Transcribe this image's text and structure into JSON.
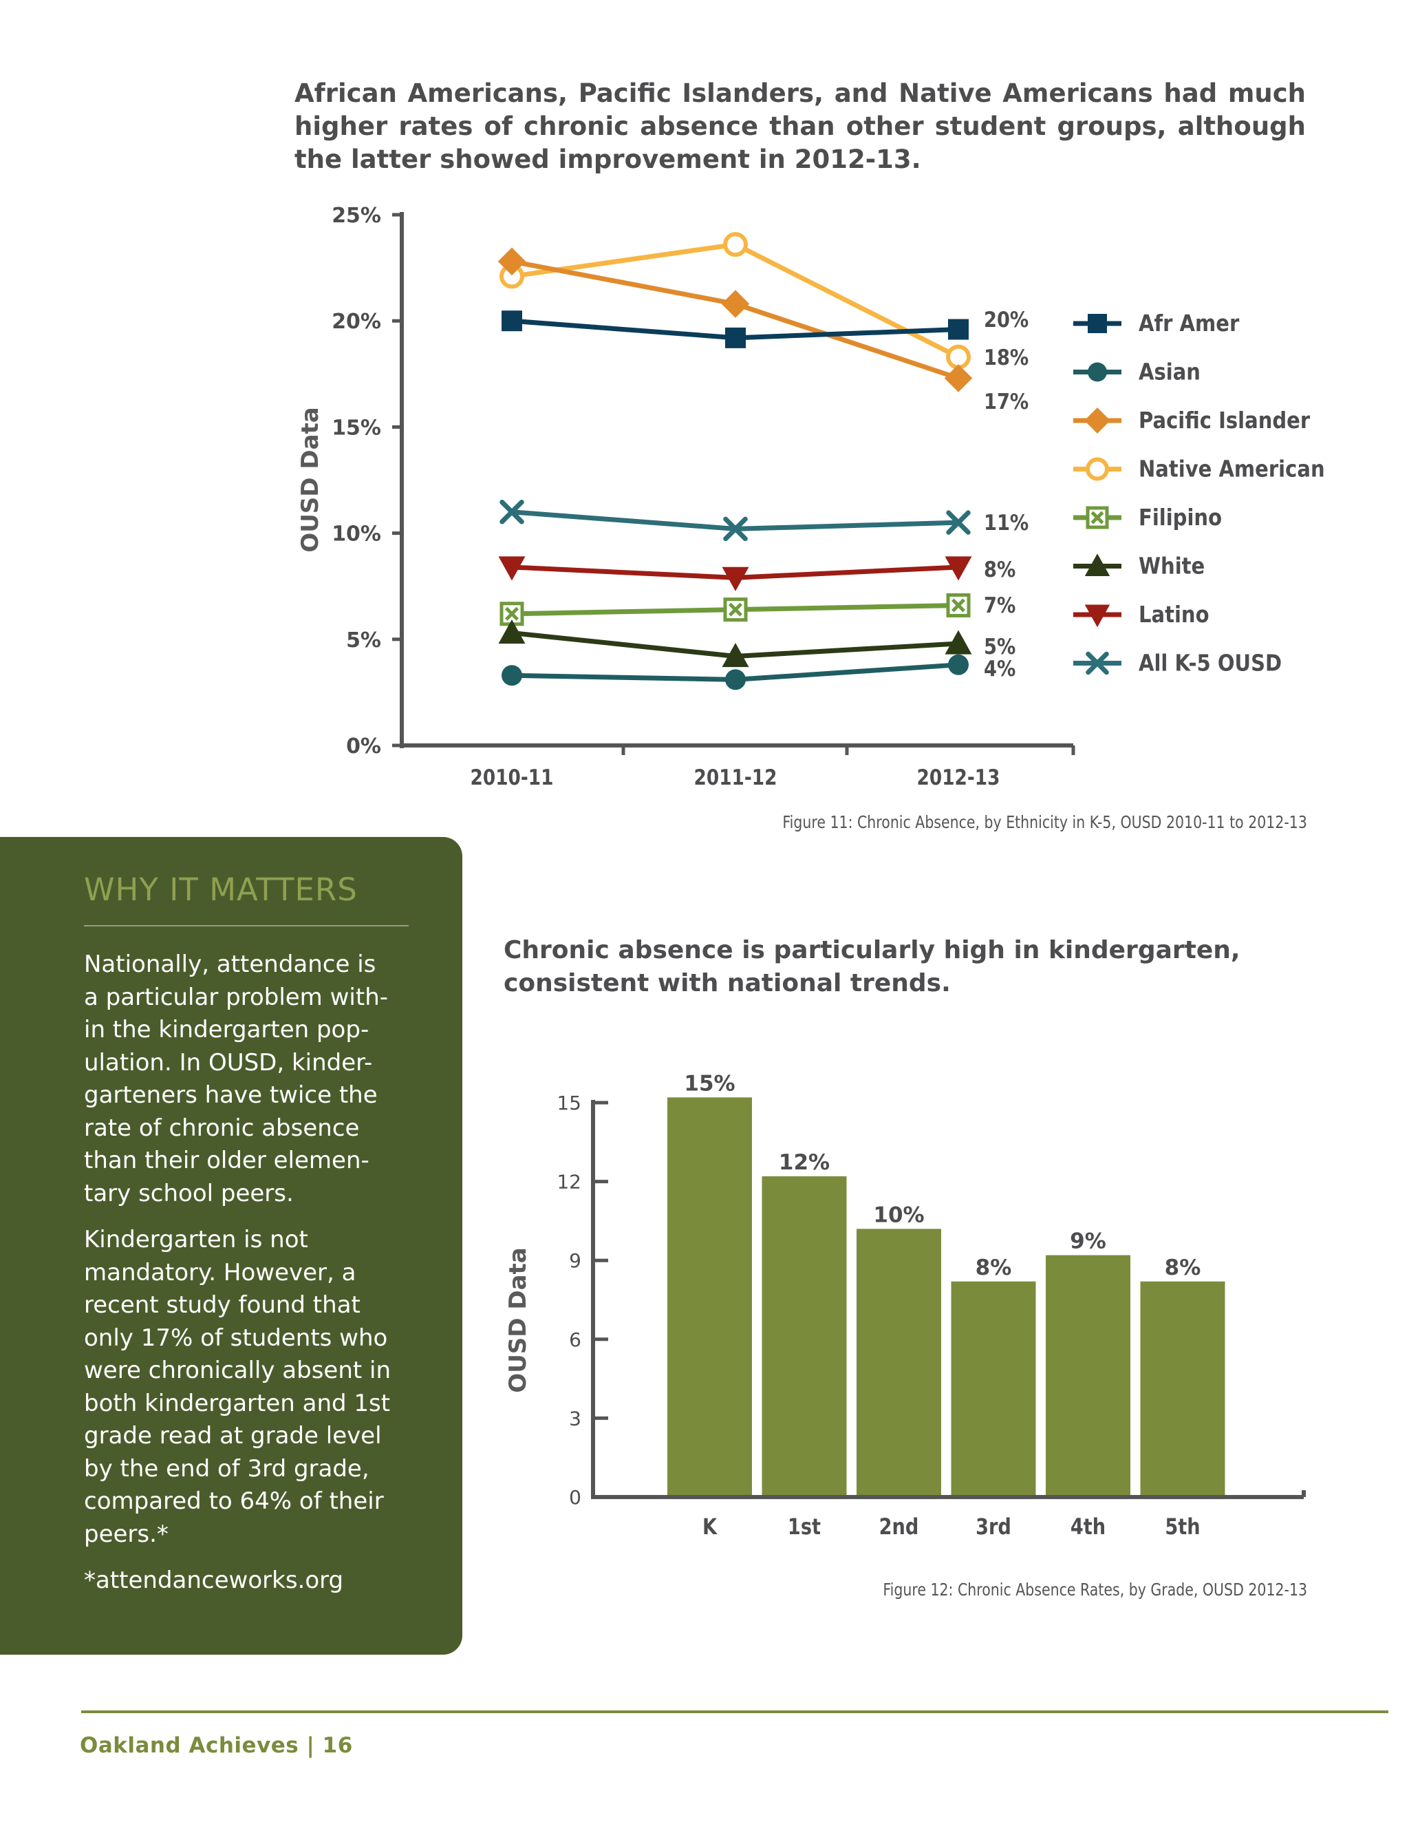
{
  "fig11": {
    "heading": "African Americans, Pacific Islanders, and Native Americans had much higher rates of chronic absence than other student groups, although the latter showed improvement in 2012-13.",
    "caption": "Figure 11: Chronic Absence, by Ethnicity in K-5, OUSD 2010-11 to 2012-13"
  },
  "fig12": {
    "heading": "Chronic absence is particularly high in kindergarten, consistent with national trends.",
    "caption": "Figure 12: Chronic Absence Rates, by Grade, OUSD 2012-13"
  },
  "sidebar": {
    "title": "WHY IT MATTERS",
    "paragraphs": [
      "Nationally, attendance is\na particular problem with-\nin the kindergarten pop-\nulation.  In OUSD, kinder-\ngarteners have twice the\nrate of chronic absence\nthan their older  elemen-\ntary school peers.",
      "Kindergarten is not\nmandatory.   However, a\nrecent study found that\nonly 17% of students who\nwere chronically absent in\nboth kindergarten and 1st\ngrade read at grade level\nby the end of 3rd grade,\ncompared to 64% of their\npeers.*",
      "*attendanceworks.org"
    ]
  },
  "footer": {
    "text": "Oakland Achieves | 16"
  },
  "chart_data": [
    {
      "type": "line",
      "ylabel": "OUSD Data",
      "ylim": [
        0,
        25
      ],
      "yticks": [
        0,
        5,
        10,
        15,
        20,
        25
      ],
      "ytick_labels": [
        "0%",
        "5%",
        "10%",
        "15%",
        "20%",
        "25%"
      ],
      "categories": [
        "2010-11",
        "2011-12",
        "2012-13"
      ],
      "legend_position": "right",
      "series": [
        {
          "name": "Afr Amer",
          "values": [
            20.0,
            19.2,
            19.6
          ],
          "color": "#0b3d5b",
          "marker": "square",
          "end_label": "20%"
        },
        {
          "name": "Asian",
          "values": [
            3.3,
            3.1,
            3.8
          ],
          "color": "#1f5d62",
          "marker": "circle",
          "end_label": "4%"
        },
        {
          "name": "Pacific Islander",
          "values": [
            22.8,
            20.8,
            17.3
          ],
          "color": "#e08a2c",
          "marker": "diamond",
          "end_label": "17%"
        },
        {
          "name": "Native American",
          "values": [
            22.1,
            23.6,
            18.3
          ],
          "color": "#f7b543",
          "marker": "open-circle",
          "end_label": "18%"
        },
        {
          "name": "Filipino",
          "values": [
            6.2,
            6.4,
            6.6
          ],
          "color": "#6f9a3c",
          "marker": "boxed-x",
          "end_label": "7%"
        },
        {
          "name": "White",
          "values": [
            5.3,
            4.2,
            4.8
          ],
          "color": "#2c3a16",
          "marker": "triangle-up",
          "end_label": "5%"
        },
        {
          "name": "Latino",
          "values": [
            8.4,
            7.9,
            8.4
          ],
          "color": "#9c1d14",
          "marker": "triangle-down",
          "end_label": "8%"
        },
        {
          "name": "All K-5 OUSD",
          "values": [
            11.0,
            10.2,
            10.5
          ],
          "color": "#2d6e78",
          "marker": "x",
          "end_label": "11%"
        }
      ]
    },
    {
      "type": "bar",
      "ylabel": "OUSD Data",
      "ylim": [
        0,
        15
      ],
      "yticks": [
        0,
        3,
        6,
        9,
        12,
        15
      ],
      "categories": [
        "K",
        "1st",
        "2nd",
        "3rd",
        "4th",
        "5th"
      ],
      "values": [
        15.2,
        12.2,
        10.2,
        8.2,
        9.2,
        8.2
      ],
      "data_labels": [
        "15%",
        "12%",
        "10%",
        "8%",
        "9%",
        "8%"
      ],
      "bar_color": "#7a8c3c"
    }
  ]
}
